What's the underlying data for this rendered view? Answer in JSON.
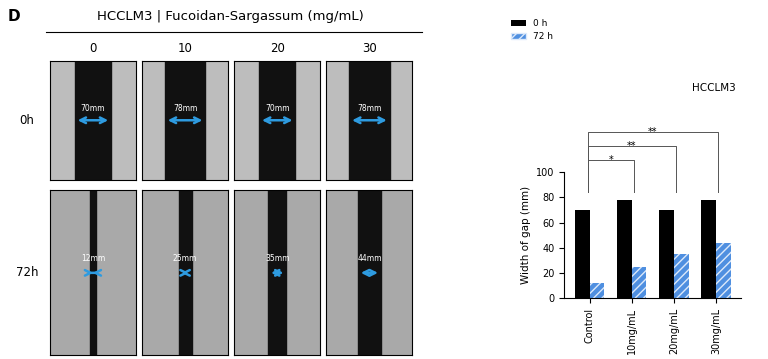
{
  "panel_label": "D",
  "images": {
    "title": "HCCLM3 | Fucoidan-Sargassum (mg/mL)",
    "columns": [
      "0",
      "10",
      "20",
      "30"
    ],
    "rows": [
      "0h",
      "72h"
    ],
    "gap_labels": [
      [
        "70mm",
        "78mm",
        "70mm",
        "78mm"
      ],
      [
        "12mm",
        "25mm",
        "35mm",
        "44mm"
      ]
    ]
  },
  "chart_data": {
    "type": "bar",
    "title": "HCCLM3",
    "y_label": "Width of gap (mm)",
    "categories": [
      "Control",
      "10mg/mL",
      "20mg/mL",
      "30mg/mL"
    ],
    "series": [
      {
        "name": "0 h",
        "color": "#000000",
        "values": [
          70,
          78,
          70,
          78
        ]
      },
      {
        "name": "72 h",
        "color": "#4f8fe0",
        "values": [
          12,
          25,
          35,
          44
        ]
      }
    ],
    "ylim": [
      0,
      100
    ],
    "yticks": [
      0,
      20,
      40,
      60,
      80,
      100
    ],
    "legend": "upper left",
    "significance": [
      {
        "from": 0,
        "to": 1,
        "label": "*"
      },
      {
        "from": 0,
        "to": 2,
        "label": "**"
      },
      {
        "from": 0,
        "to": 3,
        "label": "**"
      }
    ]
  }
}
